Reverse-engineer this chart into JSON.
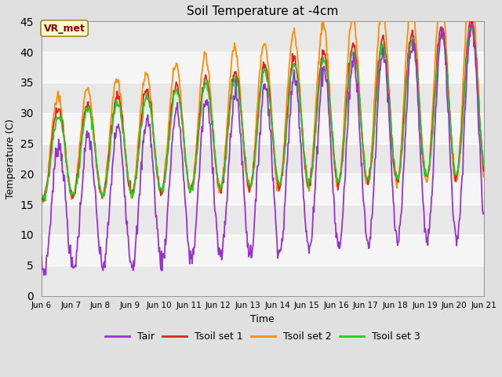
{
  "title": "Soil Temperature at -4cm",
  "xlabel": "Time",
  "ylabel": "Temperature (C)",
  "ylim": [
    0,
    45
  ],
  "yticks": [
    0,
    5,
    10,
    15,
    20,
    25,
    30,
    35,
    40,
    45
  ],
  "colors": {
    "Tair": "#9b30d0",
    "Tsoil_set1": "#dd2222",
    "Tsoil_set2": "#ff8c00",
    "Tsoil_set3": "#22cc22"
  },
  "legend_labels": [
    "Tair",
    "Tsoil set 1",
    "Tsoil set 2",
    "Tsoil set 3"
  ],
  "annotation_text": "VR_met",
  "annotation_color": "#8b0000",
  "annotation_bg": "#ffffcc",
  "band_colors": [
    "#e8e8e8",
    "#f5f5f5"
  ],
  "fig_bg": "#e0e0e0",
  "n_days": 15,
  "points_per_day": 48,
  "start_day": 6
}
